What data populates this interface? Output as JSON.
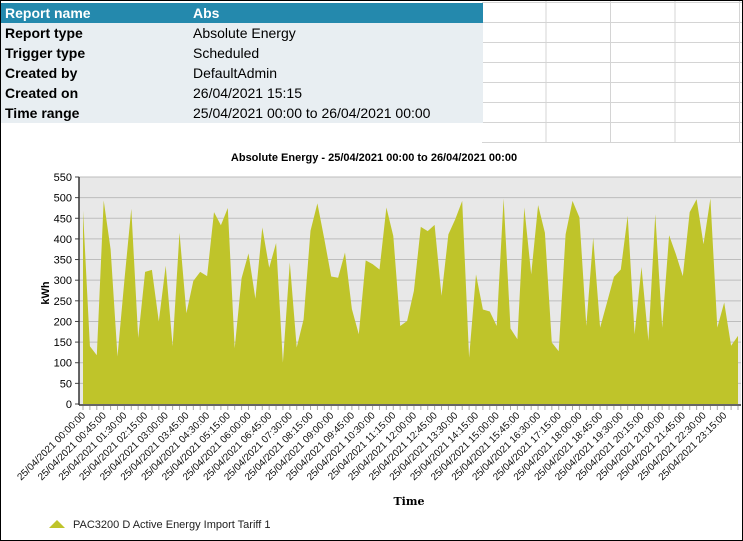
{
  "report_info": {
    "header": {
      "label": "Report name",
      "value": "Abs"
    },
    "rows": [
      {
        "label": "Report type",
        "value": "Absolute Energy"
      },
      {
        "label": "Trigger type",
        "value": "Scheduled"
      },
      {
        "label": "Created by",
        "value": "DefaultAdmin"
      },
      {
        "label": "Created on",
        "value": "26/04/2021 15:15"
      },
      {
        "label": "Time range",
        "value": "25/04/2021 00:00 to 26/04/2021 00:00"
      }
    ]
  },
  "chart_data": {
    "type": "area",
    "title": "Absolute Energy - 25/04/2021 00:00 to 26/04/2021 00:00",
    "xlabel": "Time",
    "ylabel": "kWh",
    "ylim": [
      0,
      550
    ],
    "yticks": [
      0,
      50,
      100,
      150,
      200,
      250,
      300,
      350,
      400,
      450,
      500,
      550
    ],
    "grid": true,
    "legend_position": "bottom-left",
    "fill_color": "#bfc42a",
    "x": [
      "25/04/2021 00:00:00",
      "25/04/2021 00:15:00",
      "25/04/2021 00:30:00",
      "25/04/2021 00:45:00",
      "25/04/2021 01:00:00",
      "25/04/2021 01:15:00",
      "25/04/2021 01:30:00",
      "25/04/2021 01:45:00",
      "25/04/2021 02:00:00",
      "25/04/2021 02:15:00",
      "25/04/2021 02:30:00",
      "25/04/2021 02:45:00",
      "25/04/2021 03:00:00",
      "25/04/2021 03:15:00",
      "25/04/2021 03:30:00",
      "25/04/2021 03:45:00",
      "25/04/2021 04:00:00",
      "25/04/2021 04:15:00",
      "25/04/2021 04:30:00",
      "25/04/2021 04:45:00",
      "25/04/2021 05:00:00",
      "25/04/2021 05:15:00",
      "25/04/2021 05:30:00",
      "25/04/2021 05:45:00",
      "25/04/2021 06:00:00",
      "25/04/2021 06:15:00",
      "25/04/2021 06:30:00",
      "25/04/2021 06:45:00",
      "25/04/2021 07:00:00",
      "25/04/2021 07:15:00",
      "25/04/2021 07:30:00",
      "25/04/2021 07:45:00",
      "25/04/2021 08:00:00",
      "25/04/2021 08:15:00",
      "25/04/2021 08:30:00",
      "25/04/2021 08:45:00",
      "25/04/2021 09:00:00",
      "25/04/2021 09:15:00",
      "25/04/2021 09:30:00",
      "25/04/2021 09:45:00",
      "25/04/2021 10:00:00",
      "25/04/2021 10:15:00",
      "25/04/2021 10:30:00",
      "25/04/2021 10:45:00",
      "25/04/2021 11:00:00",
      "25/04/2021 11:15:00",
      "25/04/2021 11:30:00",
      "25/04/2021 11:45:00",
      "25/04/2021 12:00:00",
      "25/04/2021 12:15:00",
      "25/04/2021 12:30:00",
      "25/04/2021 12:45:00",
      "25/04/2021 13:00:00",
      "25/04/2021 13:15:00",
      "25/04/2021 13:30:00",
      "25/04/2021 13:45:00",
      "25/04/2021 14:00:00",
      "25/04/2021 14:15:00",
      "25/04/2021 14:30:00",
      "25/04/2021 14:45:00",
      "25/04/2021 15:00:00",
      "25/04/2021 15:15:00",
      "25/04/2021 15:30:00",
      "25/04/2021 15:45:00",
      "25/04/2021 16:00:00",
      "25/04/2021 16:15:00",
      "25/04/2021 16:30:00",
      "25/04/2021 16:45:00",
      "25/04/2021 17:00:00",
      "25/04/2021 17:15:00",
      "25/04/2021 17:30:00",
      "25/04/2021 17:45:00",
      "25/04/2021 18:00:00",
      "25/04/2021 18:15:00",
      "25/04/2021 18:30:00",
      "25/04/2021 18:45:00",
      "25/04/2021 19:00:00",
      "25/04/2021 19:15:00",
      "25/04/2021 19:30:00",
      "25/04/2021 19:45:00",
      "25/04/2021 20:00:00",
      "25/04/2021 20:15:00",
      "25/04/2021 20:30:00",
      "25/04/2021 20:45:00",
      "25/04/2021 21:00:00",
      "25/04/2021 21:15:00",
      "25/04/2021 21:30:00",
      "25/04/2021 21:45:00",
      "25/04/2021 22:00:00",
      "25/04/2021 22:15:00",
      "25/04/2021 22:30:00",
      "25/04/2021 22:45:00",
      "25/04/2021 23:00:00",
      "25/04/2021 23:15:00",
      "25/04/2021 23:30:00",
      "25/04/2021 23:45:00"
    ],
    "xtick_labels": [
      "25/04/2021 00:00:00",
      "25/04/2021 00:45:00",
      "25/04/2021 01:30:00",
      "25/04/2021 02:15:00",
      "25/04/2021 03:00:00",
      "25/04/2021 03:45:00",
      "25/04/2021 04:30:00",
      "25/04/2021 05:15:00",
      "25/04/2021 06:00:00",
      "25/04/2021 06:45:00",
      "25/04/2021 07:30:00",
      "25/04/2021 08:15:00",
      "25/04/2021 09:00:00",
      "25/04/2021 09:45:00",
      "25/04/2021 10:30:00",
      "25/04/2021 11:15:00",
      "25/04/2021 12:00:00",
      "25/04/2021 12:45:00",
      "25/04/2021 13:30:00",
      "25/04/2021 14:15:00",
      "25/04/2021 15:00:00",
      "25/04/2021 15:45:00",
      "25/04/2021 16:30:00",
      "25/04/2021 17:15:00",
      "25/04/2021 18:00:00",
      "25/04/2021 18:45:00",
      "25/04/2021 19:30:00",
      "25/04/2021 20:15:00",
      "25/04/2021 21:00:00",
      "25/04/2021 21:45:00",
      "25/04/2021 22:30:00",
      "25/04/2021 23:15:00"
    ],
    "series": [
      {
        "name": "PAC3200 D Active Energy Import Tariff 1",
        "values": [
          468,
          140,
          118,
          493,
          375,
          115,
          300,
          473,
          160,
          320,
          325,
          200,
          335,
          140,
          415,
          220,
          298,
          320,
          310,
          465,
          433,
          475,
          135,
          305,
          365,
          255,
          428,
          330,
          390,
          100,
          343,
          137,
          205,
          420,
          486,
          400,
          309,
          306,
          367,
          230,
          169,
          348,
          339,
          326,
          476,
          407,
          189,
          201,
          274,
          429,
          419,
          434,
          262,
          411,
          448,
          492,
          112,
          314,
          229,
          224,
          189,
          498,
          183,
          157,
          476,
          314,
          482,
          415,
          149,
          128,
          411,
          492,
          452,
          189,
          403,
          185,
          246,
          308,
          326,
          456,
          169,
          332,
          153,
          460,
          185,
          409,
          363,
          310,
          465,
          496,
          387,
          498,
          185,
          246,
          141,
          165
        ]
      }
    ]
  }
}
